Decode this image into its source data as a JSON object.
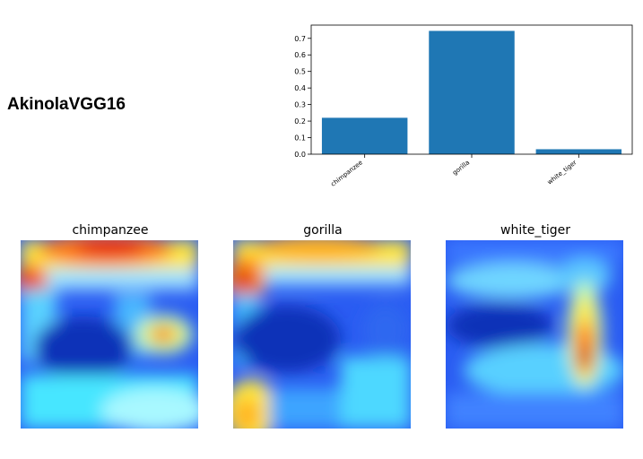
{
  "model_name": "AkinolaVGG16",
  "chart_data": {
    "type": "bar",
    "categories": [
      "chimpanzee",
      "gorilla",
      "white_tiger"
    ],
    "values": [
      0.22,
      0.745,
      0.03
    ],
    "ylim": [
      0,
      0.78
    ],
    "yticks": [
      "0.0",
      "0.1",
      "0.2",
      "0.3",
      "0.4",
      "0.5",
      "0.6",
      "0.7"
    ],
    "bar_color": "#1f77b4",
    "title": "",
    "xlabel": "",
    "ylabel": ""
  },
  "heatmaps": [
    {
      "title": "chimpanzee"
    },
    {
      "title": "gorilla"
    },
    {
      "title": "white_tiger"
    }
  ]
}
